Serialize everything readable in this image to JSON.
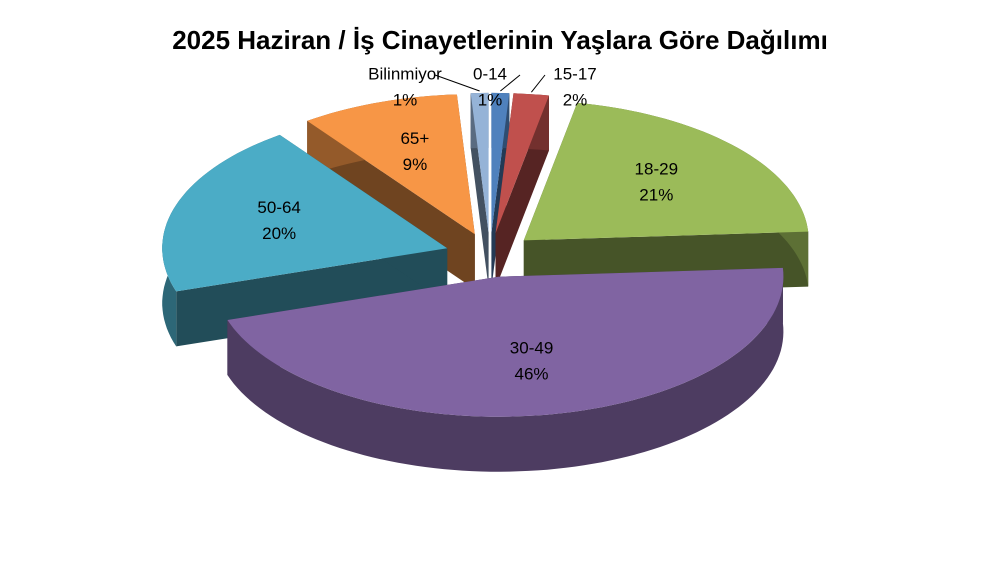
{
  "chart_data": {
    "type": "pie3d",
    "title": "2025 Haziran / İş Cinayetlerinin Yaşlara Göre Dağılımı",
    "categories": [
      "0-14",
      "15-17",
      "18-29",
      "30-49",
      "50-64",
      "65+",
      "Bilinmiyor"
    ],
    "values": [
      1,
      2,
      21,
      46,
      20,
      9,
      1
    ],
    "value_labels": [
      "1%",
      "2%",
      "21%",
      "46%",
      "20%",
      "9%",
      "1%"
    ],
    "colors": [
      "#4f81bd",
      "#c0504d",
      "#9bbb59",
      "#8064a2",
      "#4bacc6",
      "#f79646",
      "#95b3d7"
    ]
  }
}
